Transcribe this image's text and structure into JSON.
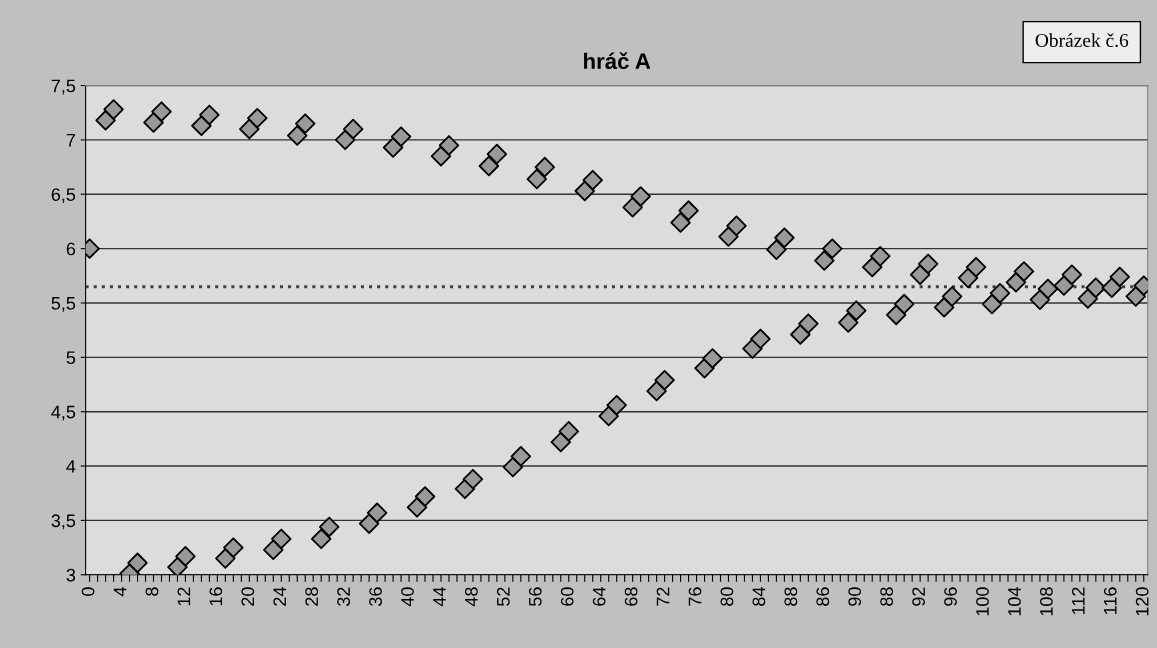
{
  "chart_data": {
    "type": "scatter",
    "title": "hráč A",
    "categories": [
      "0",
      null,
      null,
      null,
      "4",
      null,
      null,
      null,
      "8",
      null,
      null,
      null,
      "12",
      null,
      null,
      null,
      "16",
      null,
      null,
      null,
      "20",
      null,
      null,
      null,
      "24",
      null,
      null,
      null,
      "28",
      null,
      null,
      null,
      "32",
      null,
      null,
      null,
      "36",
      null,
      null,
      null,
      "40",
      null,
      null,
      null,
      "44",
      null,
      null,
      null,
      "48",
      null,
      null,
      null,
      "52",
      null,
      null,
      null,
      "56",
      null,
      null,
      null,
      "60",
      null,
      null,
      null,
      "64",
      null,
      null,
      null,
      "68",
      null,
      null,
      null,
      "72",
      null,
      null,
      null,
      "76",
      null,
      null,
      null,
      "80",
      null,
      null,
      null,
      "84",
      null,
      null,
      null,
      "88",
      null,
      null,
      null,
      "86",
      null,
      null,
      null,
      "90",
      null,
      null,
      null,
      "88",
      null,
      null,
      null,
      "92",
      null,
      null,
      null,
      "96",
      null,
      null,
      null,
      "100",
      null,
      null,
      null,
      "104",
      null,
      null,
      null,
      "108",
      null,
      null,
      null,
      "112",
      null,
      null,
      null,
      "116",
      null,
      null,
      null,
      "120"
    ],
    "series": [
      {
        "color": "#999999",
        "values": [
          6,
          null,
          7.18,
          7.28,
          null,
          3.01,
          3.11,
          null,
          7.16,
          7.26,
          null,
          3.07,
          3.17,
          null,
          7.13,
          7.23,
          null,
          3.15,
          3.25,
          null,
          7.1,
          7.2,
          null,
          3.23,
          3.33,
          null,
          7.04,
          7.15,
          null,
          3.33,
          3.44,
          null,
          7.0,
          7.1,
          null,
          3.47,
          3.57,
          null,
          6.93,
          7.03,
          null,
          3.62,
          3.72,
          null,
          6.85,
          6.95,
          null,
          3.79,
          3.88,
          null,
          6.76,
          6.87,
          null,
          3.99,
          4.09,
          null,
          6.64,
          6.75,
          null,
          4.22,
          4.32,
          null,
          6.53,
          6.63,
          null,
          4.46,
          4.56,
          null,
          6.38,
          6.48,
          null,
          4.69,
          4.79,
          null,
          6.24,
          6.35,
          null,
          4.9,
          4.99,
          null,
          6.11,
          6.21,
          null,
          5.08,
          5.17,
          null,
          5.99,
          6.1,
          null,
          5.21,
          5.31,
          null,
          5.89,
          6.0,
          null,
          5.32,
          5.43,
          null,
          5.83,
          5.93,
          null,
          5.39,
          5.49,
          null,
          5.76,
          5.86,
          null,
          5.46,
          5.56,
          null,
          5.73,
          5.83,
          null,
          5.49,
          5.59,
          null,
          5.69,
          5.79,
          null,
          5.53,
          5.63,
          null,
          5.66,
          5.76,
          null,
          5.54,
          5.64,
          null,
          5.64,
          5.74,
          null,
          5.56,
          5.66
        ]
      }
    ],
    "ylim": [
      3,
      7.5
    ],
    "yticks": [
      {
        "value": 3,
        "label": "3"
      },
      {
        "value": 3.5,
        "label": "3,5"
      },
      {
        "value": 4,
        "label": "4"
      },
      {
        "value": 4.5,
        "label": "4,5"
      },
      {
        "value": 5,
        "label": "5"
      },
      {
        "value": 5.5,
        "label": "5,5"
      },
      {
        "value": 6,
        "label": "6"
      },
      {
        "value": 6.5,
        "label": "6,5"
      },
      {
        "value": 7,
        "label": "7"
      },
      {
        "value": 7.5,
        "label": "7,5"
      }
    ],
    "ref_lines": [
      {
        "axis": "y",
        "value": 5.65,
        "color": "#404040",
        "line_style": "dotted"
      }
    ],
    "annotations": [
      "Obrázek č.6"
    ],
    "grid": "y",
    "marker": "diamond",
    "legend": false
  }
}
